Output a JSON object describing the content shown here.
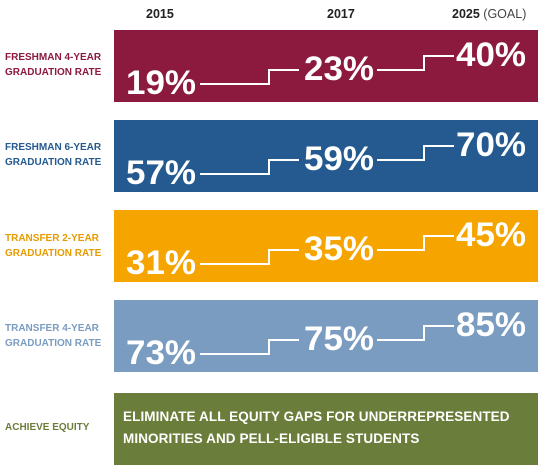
{
  "chart_data": {
    "type": "table",
    "columns": [
      "2015",
      "2017",
      "2025"
    ],
    "column_note": "(GOAL)",
    "rows": [
      {
        "label": [
          "FRESHMAN 4-YEAR",
          "GRADUATION RATE"
        ],
        "values": [
          "19%",
          "23%",
          "40%"
        ],
        "color": "#8b1a3e",
        "label_color": "#8b1a3e"
      },
      {
        "label": [
          "FRESHMAN 6-YEAR",
          "GRADUATION RATE"
        ],
        "values": [
          "57%",
          "59%",
          "70%"
        ],
        "color": "#245a8f",
        "label_color": "#245a8f"
      },
      {
        "label": [
          "TRANSFER 2-YEAR",
          "GRADUATION RATE"
        ],
        "values": [
          "31%",
          "35%",
          "45%"
        ],
        "color": "#f5a400",
        "label_color": "#e69b00"
      },
      {
        "label": [
          "TRANSFER 4-YEAR",
          "GRADUATION RATE"
        ],
        "values": [
          "73%",
          "75%",
          "85%"
        ],
        "color": "#7a9cc1",
        "label_color": "#7a9cc1"
      }
    ],
    "goal_row": {
      "label": "ACHIEVE EQUITY",
      "text_lines": [
        "ELIMINATE ALL EQUITY GAPS FOR UNDERREPRESENTED",
        "MINORITIES AND PELL-ELIGIBLE STUDENTS"
      ],
      "color": "#6b7d3a",
      "label_color": "#6b7d3a"
    }
  }
}
